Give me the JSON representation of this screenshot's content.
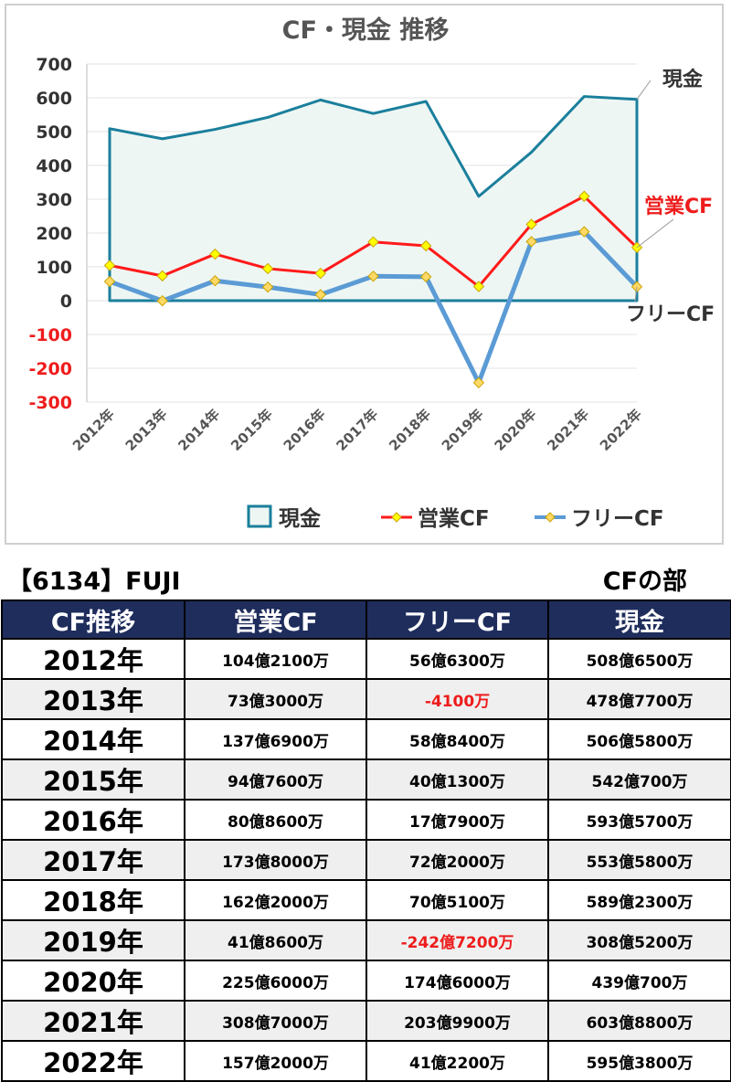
{
  "chart_data": {
    "type": "line",
    "title": "CF・現金 推移",
    "categories": [
      "2012年",
      "2013年",
      "2014年",
      "2015年",
      "2016年",
      "2017年",
      "2018年",
      "2019年",
      "2020年",
      "2021年",
      "2022年"
    ],
    "ylim": [
      -300,
      700
    ],
    "yticks": [
      "700",
      "600",
      "500",
      "400",
      "300",
      "200",
      "100",
      "0",
      "-100",
      "-200",
      "-300"
    ],
    "grid": true,
    "legend_position": "bottom",
    "series": [
      {
        "name": "現金",
        "style": "area",
        "color": "#1a7f9c",
        "fill": "#eef6f3",
        "values": [
          508.65,
          478.77,
          506.58,
          542.07,
          593.57,
          553.58,
          589.23,
          308.52,
          439.07,
          603.88,
          595.38
        ]
      },
      {
        "name": "営業CF",
        "style": "line-marker",
        "color": "#ff1a1a",
        "marker": "#ffff00",
        "values": [
          104.21,
          73.3,
          137.69,
          94.76,
          80.86,
          173.8,
          162.2,
          41.86,
          225.6,
          308.7,
          157.2
        ]
      },
      {
        "name": "フリーCF",
        "style": "line-marker",
        "color": "#5b9bd5",
        "marker": "#ffd966",
        "values": [
          56.63,
          -0.41,
          58.84,
          40.13,
          17.79,
          72.2,
          70.51,
          -242.72,
          174.6,
          203.99,
          41.22
        ]
      }
    ],
    "annotations": [
      "現金",
      "営業CF",
      "フリーCF"
    ]
  },
  "stock_header": "【6134】FUJI",
  "section_label": "CFの部",
  "table": {
    "headers": [
      "CF推移",
      "営業CF",
      "フリーCF",
      "現金"
    ],
    "rows": [
      [
        "2012年",
        "104億2100万",
        "56億6300万",
        "508億6500万"
      ],
      [
        "2013年",
        "73億3000万",
        "-4100万",
        "478億7700万"
      ],
      [
        "2014年",
        "137億6900万",
        "58億8400万",
        "506億5800万"
      ],
      [
        "2015年",
        "94億7600万",
        "40億1300万",
        "542億700万"
      ],
      [
        "2016年",
        "80億8600万",
        "17億7900万",
        "593億5700万"
      ],
      [
        "2017年",
        "173億8000万",
        "72億2000万",
        "553億5800万"
      ],
      [
        "2018年",
        "162億2000万",
        "70億5100万",
        "589億2300万"
      ],
      [
        "2019年",
        "41億8600万",
        "-242億7200万",
        "308億5200万"
      ],
      [
        "2020年",
        "225億6000万",
        "174億6000万",
        "439億700万"
      ],
      [
        "2021年",
        "308億7000万",
        "203億9900万",
        "603億8800万"
      ],
      [
        "2022年",
        "157億2000万",
        "41億2200万",
        "595億3800万"
      ]
    ]
  },
  "colors": {
    "header_bg": "#1f2d5c",
    "negative": "#ee1c1c",
    "alt_row": "#efefef"
  }
}
